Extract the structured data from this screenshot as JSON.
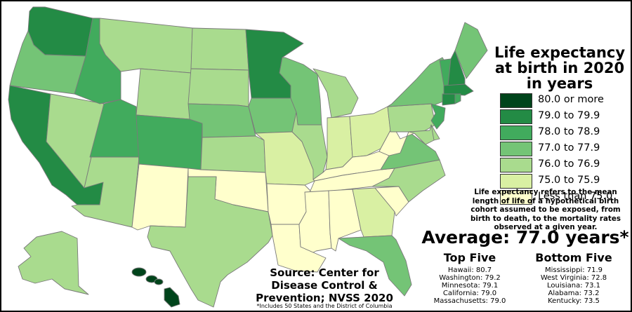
{
  "title": "Life expectancy at birth in 2020 in years",
  "legend": [
    {
      "label": "80.0 or more",
      "color": "#00441b"
    },
    {
      "label": "79.0 to 79.9",
      "color": "#238b45"
    },
    {
      "label": "78.0 to 78.9",
      "color": "#41ab5d"
    },
    {
      "label": "77.0 to 77.9",
      "color": "#74c476"
    },
    {
      "label": "76.0 to 76.9",
      "color": "#a9db8e"
    },
    {
      "label": "75.0 to 75.9",
      "color": "#d9f0a3"
    },
    {
      "label": "Less than 75.0",
      "color": "#ffffcc"
    }
  ],
  "note": "Life expectancy refers to the mean length of life of a hypothetical birth cohort assumed to be exposed, from birth to death, to the mortality rates observed at a given year.",
  "average": "Average: 77.0 years*",
  "top_five": {
    "heading": "Top Five",
    "items": [
      "Hawaii: 80.7",
      "Washington: 79.2",
      "Minnesota: 79.1",
      "California: 79.0",
      "Massachusetts: 79.0"
    ]
  },
  "bottom_five": {
    "heading": "Bottom Five",
    "items": [
      "Mississippi: 71.9",
      "West Virginia: 72.8",
      "Louisiana: 73.1",
      "Alabama: 73.2",
      "Kentucky: 73.5"
    ]
  },
  "source": "Source: Center for Disease Control & Prevention; NVSS 2020",
  "footnote": "*Includes 50 States and the District of Columbia",
  "states": [
    {
      "name": "Washington",
      "bin": 1
    },
    {
      "name": "Oregon",
      "bin": 3
    },
    {
      "name": "California",
      "bin": 1
    },
    {
      "name": "Nevada",
      "bin": 4
    },
    {
      "name": "Idaho",
      "bin": 2
    },
    {
      "name": "Montana",
      "bin": 4
    },
    {
      "name": "Wyoming",
      "bin": 4
    },
    {
      "name": "Utah",
      "bin": 2
    },
    {
      "name": "Arizona",
      "bin": 4
    },
    {
      "name": "Colorado",
      "bin": 2
    },
    {
      "name": "New Mexico",
      "bin": 6
    },
    {
      "name": "North Dakota",
      "bin": 4
    },
    {
      "name": "South Dakota",
      "bin": 4
    },
    {
      "name": "Nebraska",
      "bin": 3
    },
    {
      "name": "Kansas",
      "bin": 4
    },
    {
      "name": "Oklahoma",
      "bin": 6
    },
    {
      "name": "Texas",
      "bin": 4
    },
    {
      "name": "Minnesota",
      "bin": 1
    },
    {
      "name": "Iowa",
      "bin": 3
    },
    {
      "name": "Missouri",
      "bin": 5
    },
    {
      "name": "Arkansas",
      "bin": 6
    },
    {
      "name": "Louisiana",
      "bin": 6
    },
    {
      "name": "Wisconsin",
      "bin": 3
    },
    {
      "name": "Illinois",
      "bin": 4
    },
    {
      "name": "Michigan",
      "bin": 4
    },
    {
      "name": "Indiana",
      "bin": 5
    },
    {
      "name": "Ohio",
      "bin": 5
    },
    {
      "name": "Kentucky",
      "bin": 6
    },
    {
      "name": "Tennessee",
      "bin": 6
    },
    {
      "name": "Mississippi",
      "bin": 6
    },
    {
      "name": "Alabama",
      "bin": 6
    },
    {
      "name": "Georgia",
      "bin": 5
    },
    {
      "name": "Florida",
      "bin": 3
    },
    {
      "name": "South Carolina",
      "bin": 6
    },
    {
      "name": "North Carolina",
      "bin": 4
    },
    {
      "name": "Virginia",
      "bin": 3
    },
    {
      "name": "West Virginia",
      "bin": 6
    },
    {
      "name": "Pennsylvania",
      "bin": 4
    },
    {
      "name": "New York",
      "bin": 3
    },
    {
      "name": "Vermont",
      "bin": 2
    },
    {
      "name": "New Hampshire",
      "bin": 1
    },
    {
      "name": "Maine",
      "bin": 3
    },
    {
      "name": "Massachusetts",
      "bin": 1
    },
    {
      "name": "Connecticut",
      "bin": 1
    },
    {
      "name": "Rhode Island",
      "bin": 2
    },
    {
      "name": "New Jersey",
      "bin": 2
    },
    {
      "name": "Delaware",
      "bin": 4
    },
    {
      "name": "Maryland",
      "bin": 4
    },
    {
      "name": "Alaska",
      "bin": 4
    },
    {
      "name": "Hawaii",
      "bin": 0
    }
  ]
}
